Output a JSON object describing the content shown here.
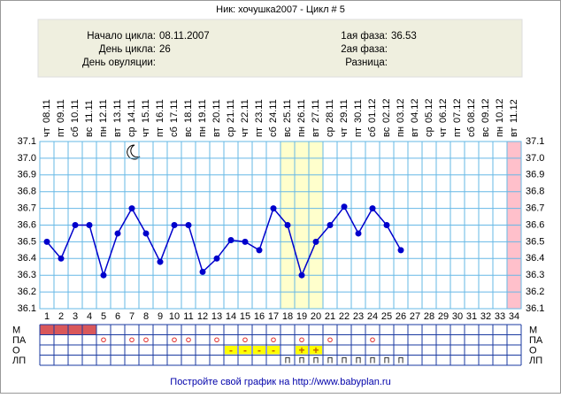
{
  "chart_data": {
    "type": "line",
    "title": "Ник: хочушка2007 - Цикл # 5",
    "info": {
      "left": [
        {
          "label": "Начало цикла:",
          "value": "08.11.2007"
        },
        {
          "label": "День цикла:",
          "value": "26"
        },
        {
          "label": "День овуляции:",
          "value": ""
        }
      ],
      "right": [
        {
          "label": "1ая фаза:",
          "value": "36.53"
        },
        {
          "label": "2ая фаза:",
          "value": ""
        },
        {
          "label": "Разница:",
          "value": ""
        }
      ]
    },
    "categories": [
      1,
      2,
      3,
      4,
      5,
      6,
      7,
      8,
      9,
      10,
      11,
      12,
      13,
      14,
      15,
      16,
      17,
      18,
      19,
      20,
      21,
      22,
      23,
      24,
      25,
      26,
      27,
      28,
      29,
      30,
      31,
      32,
      33,
      34
    ],
    "dates": [
      "08.11",
      "09.11",
      "10.11",
      "11.11",
      "12.11",
      "13.11",
      "14.11",
      "15.11",
      "16.11",
      "17.11",
      "18.11",
      "19.11",
      "20.11",
      "21.11",
      "22.11",
      "23.11",
      "24.11",
      "25.11",
      "26.11",
      "27.11",
      "28.11",
      "29.11",
      "30.11",
      "01.12",
      "02.12",
      "03.12",
      "04.12",
      "05.12",
      "06.12",
      "07.12",
      "08.12",
      "09.12",
      "10.12",
      "11.12"
    ],
    "weekdays": [
      "чт",
      "пт",
      "сб",
      "вс",
      "пн",
      "вт",
      "ср",
      "чт",
      "пт",
      "сб",
      "вс",
      "пн",
      "вт",
      "ср",
      "чт",
      "пт",
      "сб",
      "вс",
      "пн",
      "вт",
      "ср",
      "чт",
      "пт",
      "сб",
      "вс",
      "пн",
      "вт",
      "ср",
      "чт",
      "пт",
      "сб",
      "вс",
      "пн",
      "вт"
    ],
    "series": [
      {
        "name": "temperature",
        "color": "#0000cc",
        "values": [
          36.5,
          36.4,
          36.6,
          36.6,
          36.3,
          36.55,
          36.7,
          36.55,
          36.38,
          36.6,
          36.6,
          36.32,
          36.4,
          36.51,
          36.5,
          36.45,
          36.7,
          36.6,
          36.3,
          36.5,
          36.6,
          36.71,
          36.55,
          36.7,
          36.6,
          36.45,
          null,
          null,
          null,
          null,
          null,
          null,
          null,
          null
        ]
      }
    ],
    "ylim": [
      36.1,
      37.1
    ],
    "yticks": [
      36.1,
      36.2,
      36.3,
      36.4,
      36.5,
      36.6,
      36.7,
      36.8,
      36.9,
      {
        "value": 37,
        "label": "37.0"
      },
      37.1
    ],
    "grid": true,
    "highlights": [
      {
        "days": [
          18,
          19,
          20
        ],
        "color": "#ffffcc"
      },
      {
        "days": [
          34
        ],
        "color": "#ffc0cb"
      }
    ],
    "rows": [
      {
        "label": "М",
        "fill": "#d9575a",
        "days": [
          1,
          2,
          3,
          4
        ]
      },
      {
        "label": "ПА",
        "symbol": "o",
        "color": "#e03030",
        "days": [
          5,
          7,
          8,
          10,
          11,
          13,
          15,
          17,
          19,
          21,
          24
        ]
      },
      {
        "label": "О",
        "fill": "#ffff00",
        "entries": [
          {
            "day": 14,
            "label": "-"
          },
          {
            "day": 15,
            "label": "-"
          },
          {
            "day": 16,
            "label": "-"
          },
          {
            "day": 17,
            "label": "-"
          },
          {
            "day": 19,
            "label": "+"
          },
          {
            "day": 20,
            "label": "+"
          }
        ]
      },
      {
        "label": "ЛП",
        "symbol": "П",
        "days": [
          18,
          19,
          20,
          21,
          22,
          23,
          24,
          25,
          26
        ]
      }
    ],
    "footer": "Постройте свой график на http://www.babyplan.ru"
  }
}
